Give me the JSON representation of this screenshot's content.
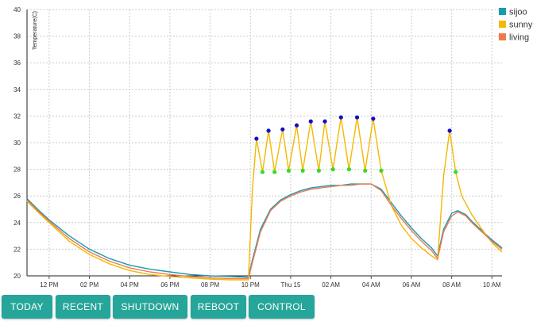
{
  "chart_data": {
    "type": "line",
    "ylabel": "Temperature(C)",
    "ylim": [
      20,
      40
    ],
    "yticks": [
      20,
      22,
      24,
      26,
      28,
      30,
      32,
      34,
      36,
      38,
      40
    ],
    "xlim": [
      10.9,
      34.5
    ],
    "xticks": [
      {
        "t": 12,
        "label": "12 PM"
      },
      {
        "t": 14,
        "label": "02 PM"
      },
      {
        "t": 16,
        "label": "04 PM"
      },
      {
        "t": 18,
        "label": "06 PM"
      },
      {
        "t": 20,
        "label": "08 PM"
      },
      {
        "t": 22,
        "label": "10 PM"
      },
      {
        "t": 24,
        "label": "Thu 15"
      },
      {
        "t": 26,
        "label": "02 AM"
      },
      {
        "t": 28,
        "label": "04 AM"
      },
      {
        "t": 30,
        "label": "06 AM"
      },
      {
        "t": 32,
        "label": "08 AM"
      },
      {
        "t": 34,
        "label": "10 AM"
      }
    ],
    "grid": true,
    "legend": "top-right",
    "series": [
      {
        "name": "sijoo",
        "color": "#1a9ab0",
        "points": [
          [
            10.9,
            25.8
          ],
          [
            11.5,
            24.9
          ],
          [
            12,
            24.2
          ],
          [
            13,
            23.0
          ],
          [
            14,
            22.0
          ],
          [
            15,
            21.3
          ],
          [
            16,
            20.8
          ],
          [
            17,
            20.5
          ],
          [
            18,
            20.3
          ],
          [
            19,
            20.1
          ],
          [
            20,
            20.0
          ],
          [
            21,
            19.95
          ],
          [
            21.9,
            19.9
          ],
          [
            22.1,
            21.2
          ],
          [
            22.5,
            23.5
          ],
          [
            23,
            25.0
          ],
          [
            23.5,
            25.7
          ],
          [
            24,
            26.1
          ],
          [
            24.5,
            26.4
          ],
          [
            25,
            26.6
          ],
          [
            25.5,
            26.7
          ],
          [
            26,
            26.8
          ],
          [
            26.5,
            26.8
          ],
          [
            27,
            26.9
          ],
          [
            27.5,
            26.9
          ],
          [
            28,
            26.9
          ],
          [
            28.5,
            26.5
          ],
          [
            29,
            25.5
          ],
          [
            29.5,
            24.5
          ],
          [
            30,
            23.6
          ],
          [
            30.5,
            22.8
          ],
          [
            31,
            22.1
          ],
          [
            31.3,
            21.5
          ],
          [
            31.6,
            23.5
          ],
          [
            32,
            24.7
          ],
          [
            32.3,
            24.9
          ],
          [
            32.7,
            24.6
          ],
          [
            33,
            24.1
          ],
          [
            33.5,
            23.4
          ],
          [
            34,
            22.7
          ],
          [
            34.5,
            22.1
          ]
        ]
      },
      {
        "name": "sunny",
        "color": "#f5b800",
        "points": [
          [
            10.9,
            25.6
          ],
          [
            11.5,
            24.7
          ],
          [
            12,
            24.0
          ],
          [
            13,
            22.6
          ],
          [
            14,
            21.6
          ],
          [
            15,
            20.9
          ],
          [
            16,
            20.4
          ],
          [
            17,
            20.1
          ],
          [
            18,
            19.95
          ],
          [
            19,
            19.85
          ],
          [
            20,
            19.75
          ],
          [
            21,
            19.7
          ],
          [
            21.9,
            19.7
          ],
          [
            22.1,
            26.5
          ],
          [
            22.3,
            30.3
          ],
          [
            22.6,
            27.8
          ],
          [
            22.9,
            30.9
          ],
          [
            23.2,
            27.8
          ],
          [
            23.6,
            31.0
          ],
          [
            23.9,
            27.9
          ],
          [
            24.3,
            31.3
          ],
          [
            24.6,
            27.9
          ],
          [
            25,
            31.6
          ],
          [
            25.4,
            27.9
          ],
          [
            25.7,
            31.6
          ],
          [
            26.1,
            28.0
          ],
          [
            26.5,
            31.9
          ],
          [
            26.9,
            28.0
          ],
          [
            27.3,
            31.9
          ],
          [
            27.7,
            27.9
          ],
          [
            28.1,
            31.8
          ],
          [
            28.5,
            27.9
          ],
          [
            29,
            25.3
          ],
          [
            29.5,
            23.8
          ],
          [
            30,
            22.8
          ],
          [
            30.5,
            22.1
          ],
          [
            31,
            21.5
          ],
          [
            31.3,
            21.2
          ],
          [
            31.6,
            27.5
          ],
          [
            31.9,
            30.9
          ],
          [
            32.2,
            27.8
          ],
          [
            32.5,
            26.0
          ],
          [
            33,
            24.6
          ],
          [
            33.5,
            23.5
          ],
          [
            34,
            22.5
          ],
          [
            34.5,
            21.8
          ]
        ]
      },
      {
        "name": "living",
        "color": "#f07a50",
        "points": [
          [
            10.9,
            25.7
          ],
          [
            11.5,
            24.8
          ],
          [
            12,
            24.1
          ],
          [
            13,
            22.8
          ],
          [
            14,
            21.8
          ],
          [
            15,
            21.1
          ],
          [
            16,
            20.6
          ],
          [
            17,
            20.3
          ],
          [
            18,
            20.1
          ],
          [
            19,
            19.95
          ],
          [
            20,
            19.85
          ],
          [
            21,
            19.8
          ],
          [
            21.9,
            19.8
          ],
          [
            22.1,
            21.0
          ],
          [
            22.5,
            23.3
          ],
          [
            23,
            24.9
          ],
          [
            23.5,
            25.6
          ],
          [
            24,
            26.0
          ],
          [
            24.5,
            26.3
          ],
          [
            25,
            26.5
          ],
          [
            25.5,
            26.6
          ],
          [
            26,
            26.7
          ],
          [
            26.5,
            26.8
          ],
          [
            27,
            26.8
          ],
          [
            27.5,
            26.9
          ],
          [
            28,
            26.9
          ],
          [
            28.5,
            26.4
          ],
          [
            29,
            25.3
          ],
          [
            29.5,
            24.3
          ],
          [
            30,
            23.4
          ],
          [
            30.5,
            22.6
          ],
          [
            31,
            21.9
          ],
          [
            31.3,
            21.3
          ],
          [
            31.6,
            23.3
          ],
          [
            32,
            24.5
          ],
          [
            32.3,
            24.8
          ],
          [
            32.7,
            24.5
          ],
          [
            33,
            24.0
          ],
          [
            33.5,
            23.3
          ],
          [
            34,
            22.6
          ],
          [
            34.5,
            22.0
          ]
        ]
      }
    ],
    "markers": [
      {
        "t": 22.3,
        "v": 30.3,
        "color": "#1010cc"
      },
      {
        "t": 22.9,
        "v": 30.9,
        "color": "#1010cc"
      },
      {
        "t": 23.6,
        "v": 31.0,
        "color": "#1010cc"
      },
      {
        "t": 24.3,
        "v": 31.3,
        "color": "#1010cc"
      },
      {
        "t": 25.0,
        "v": 31.6,
        "color": "#1010cc"
      },
      {
        "t": 25.7,
        "v": 31.6,
        "color": "#1010cc"
      },
      {
        "t": 26.5,
        "v": 31.9,
        "color": "#1010cc"
      },
      {
        "t": 27.3,
        "v": 31.9,
        "color": "#1010cc"
      },
      {
        "t": 28.1,
        "v": 31.8,
        "color": "#1010cc"
      },
      {
        "t": 31.9,
        "v": 30.9,
        "color": "#1010cc"
      },
      {
        "t": 22.6,
        "v": 27.8,
        "color": "#33dd22"
      },
      {
        "t": 23.2,
        "v": 27.8,
        "color": "#33dd22"
      },
      {
        "t": 23.9,
        "v": 27.9,
        "color": "#33dd22"
      },
      {
        "t": 24.6,
        "v": 27.9,
        "color": "#33dd22"
      },
      {
        "t": 25.4,
        "v": 27.9,
        "color": "#33dd22"
      },
      {
        "t": 26.1,
        "v": 28.0,
        "color": "#33dd22"
      },
      {
        "t": 26.9,
        "v": 28.0,
        "color": "#33dd22"
      },
      {
        "t": 27.7,
        "v": 27.9,
        "color": "#33dd22"
      },
      {
        "t": 28.5,
        "v": 27.9,
        "color": "#33dd22"
      },
      {
        "t": 32.2,
        "v": 27.8,
        "color": "#33dd22"
      }
    ]
  },
  "buttons": {
    "today": "TODAY",
    "recent": "RECENT",
    "shutdown": "SHUTDOWN",
    "reboot": "REBOOT",
    "control": "CONTROL"
  },
  "colors": {
    "button_bg": "#26a69a",
    "button_text": "#ffffff",
    "grid": "#cccccc"
  }
}
